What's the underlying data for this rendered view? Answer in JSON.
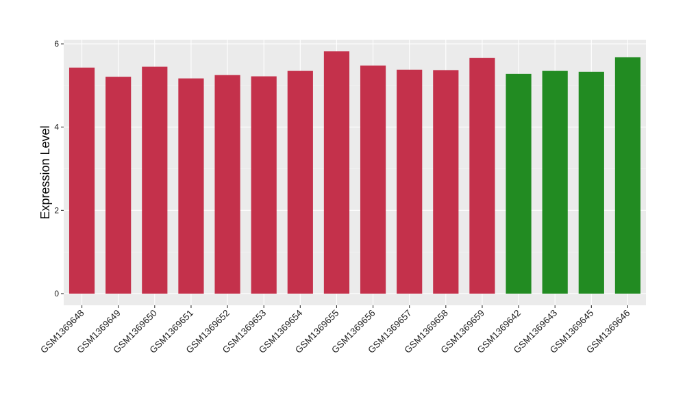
{
  "chart_data": {
    "type": "bar",
    "title": "",
    "xlabel": "",
    "ylabel": "Expression Level",
    "ylim": [
      -0.28,
      6.1
    ],
    "yticks": [
      0,
      2,
      4,
      6
    ],
    "grid": true,
    "categories": [
      "GSM1369648",
      "GSM1369649",
      "GSM1369650",
      "GSM1369651",
      "GSM1369652",
      "GSM1369653",
      "GSM1369654",
      "GSM1369655",
      "GSM1369656",
      "GSM1369657",
      "GSM1369658",
      "GSM1369659",
      "GSM1369642",
      "GSM1369643",
      "GSM1369645",
      "GSM1369646"
    ],
    "values": [
      5.43,
      5.21,
      5.45,
      5.17,
      5.25,
      5.22,
      5.35,
      5.82,
      5.48,
      5.38,
      5.37,
      5.66,
      5.28,
      5.35,
      5.33,
      5.68
    ],
    "group_index": [
      0,
      0,
      0,
      0,
      0,
      0,
      0,
      0,
      0,
      0,
      0,
      0,
      1,
      1,
      1,
      1
    ],
    "colors": {
      "groups": [
        "#c4314b",
        "#228b22"
      ],
      "panel_background": "#ebebeb",
      "grid_major": "#ffffff",
      "grid_minor": "#f5f5f5",
      "axis_tick": "#333333"
    }
  }
}
